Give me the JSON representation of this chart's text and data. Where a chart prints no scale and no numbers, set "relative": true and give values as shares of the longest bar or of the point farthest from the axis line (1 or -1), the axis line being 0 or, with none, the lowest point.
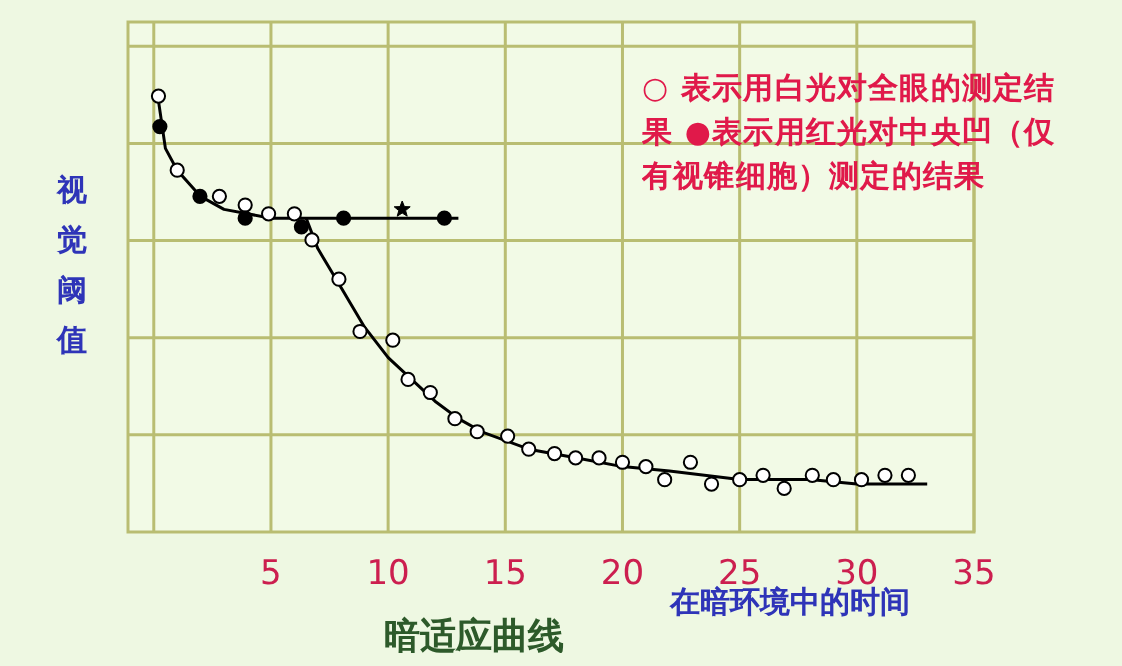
{
  "chart_data": {
    "type": "scatter",
    "relative": true,
    "title": "暗适应曲线",
    "xlabel": "在暗环境中的时间",
    "ylabel": "视觉阈值",
    "annotations": [
      "○ 表示用白光对全眼的测定结果 ●表示用红光对中央凹（仅有视锥细胞）测定的结果"
    ],
    "xlim": [
      -1.1,
      35
    ],
    "xticks": [
      {
        "value": 0,
        "label": null
      },
      5,
      10,
      15,
      20,
      25,
      30,
      35
    ],
    "grid": true,
    "series": [
      {
        "type": "scatter",
        "marker": "circle",
        "color": "#ffffff",
        "x": [
          0.2,
          1.0,
          2.8,
          3.9,
          4.9,
          6.0,
          6.75,
          7.9,
          8.8,
          10.2,
          10.85,
          11.8,
          12.85,
          13.8,
          15.1,
          16.0,
          17.1,
          18.0,
          19.0,
          20.0,
          21.0,
          21.8,
          22.9,
          23.8,
          25.0,
          26.0,
          26.9,
          28.1,
          29.0,
          30.2,
          31.2,
          32.2
        ],
        "values": [
          1.0,
          0.83,
          0.77,
          0.75,
          0.73,
          0.73,
          0.67,
          0.58,
          0.46,
          0.44,
          0.35,
          0.32,
          0.26,
          0.23,
          0.22,
          0.19,
          0.18,
          0.17,
          0.17,
          0.16,
          0.15,
          0.12,
          0.16,
          0.11,
          0.12,
          0.13,
          0.1,
          0.13,
          0.12,
          0.12,
          0.13,
          0.13
        ]
      },
      {
        "type": "scatter",
        "marker": "circle",
        "color": "#000000",
        "x": [
          0.26,
          1.97,
          3.9,
          6.3,
          8.1,
          12.4
        ],
        "values": [
          0.93,
          0.77,
          0.72,
          0.7,
          0.72,
          0.72
        ]
      },
      {
        "type": "scatter",
        "marker": "star",
        "color": "#000000",
        "x": [
          10.6
        ],
        "values": [
          0.74
        ]
      },
      {
        "type": "line",
        "color": "#000000",
        "x": [
          0.2,
          0.5,
          1,
          2,
          3,
          4,
          5,
          6,
          8,
          10,
          12,
          13
        ],
        "values": [
          0.99,
          0.88,
          0.83,
          0.77,
          0.74,
          0.73,
          0.72,
          0.72,
          0.72,
          0.72,
          0.72,
          0.72
        ]
      },
      {
        "type": "line",
        "color": "#000000",
        "x": [
          6.5,
          7,
          8,
          9,
          10,
          11,
          12,
          13,
          14,
          16,
          18,
          20,
          22,
          25,
          28,
          30,
          33
        ],
        "values": [
          0.72,
          0.65,
          0.56,
          0.47,
          0.4,
          0.35,
          0.3,
          0.26,
          0.23,
          0.19,
          0.17,
          0.15,
          0.14,
          0.12,
          0.12,
          0.11,
          0.11
        ]
      }
    ]
  }
}
